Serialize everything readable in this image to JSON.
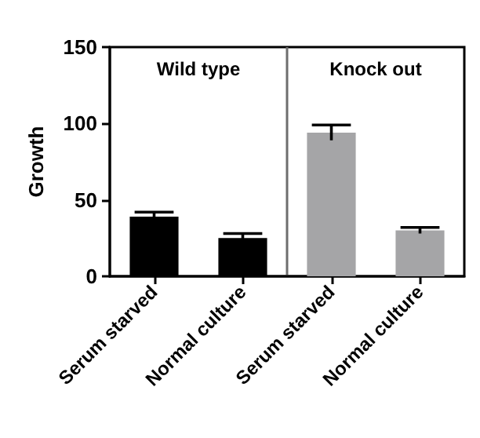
{
  "chart_data": {
    "type": "bar",
    "ylabel": "Growth",
    "categories": [
      "Serum starved",
      "Normal culture",
      "Serum starved",
      "Normal culture"
    ],
    "values": [
      39,
      25,
      94,
      30
    ],
    "colors": [
      "#000000",
      "#000000",
      "#a5a5a7",
      "#a5a5a7"
    ],
    "errors": [
      3,
      3,
      5,
      2
    ],
    "ylim": [
      0,
      150
    ],
    "yticks": [
      0,
      50,
      100,
      150
    ],
    "annotations": [
      "Wild type",
      "Knock out"
    ]
  }
}
